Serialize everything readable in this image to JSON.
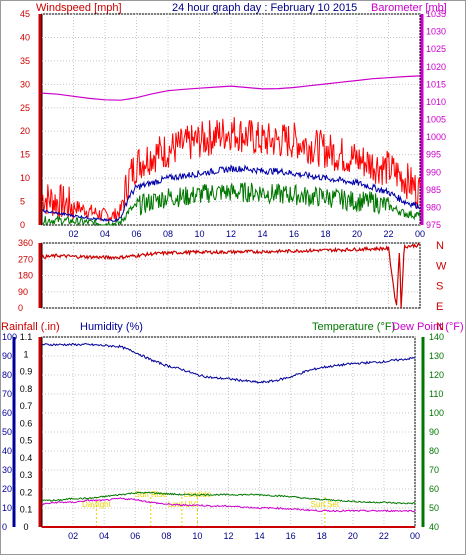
{
  "header": {
    "left_label": "Windspeed [mph]",
    "title": "24 hour graph day : February 10 2015",
    "right_label": "Barometer [mb]"
  },
  "colors": {
    "wind": "#ff0000",
    "gust": "#ff0000",
    "avg_wind": "#0000aa",
    "low_wind": "#007700",
    "barometer": "#cc00cc",
    "direction": "#cc0000",
    "rain": "#cc0000",
    "humidity": "#000099",
    "temperature": "#007700",
    "dew_point": "#cc00cc",
    "event_labels": "#e8d200",
    "left_axis_red": "#cc0000",
    "right_axis_green": "#007700"
  },
  "chart_data": [
    {
      "type": "line",
      "title": "24 hour graph day : February 10 2015",
      "x_ticks": [
        "02",
        "04",
        "06",
        "08",
        "10",
        "12",
        "14",
        "16",
        "18",
        "20",
        "22",
        "00"
      ],
      "xlim": [
        0,
        24
      ],
      "ylabel_left": "Windspeed [mph]",
      "ylabel_right": "Barometer [mb]",
      "ylim_left": [
        0,
        45
      ],
      "ylim_right": [
        975,
        1035
      ],
      "yticks_left": [
        "0",
        "5",
        "10",
        "15",
        "20",
        "25",
        "30",
        "35",
        "40",
        "45"
      ],
      "yticks_right": [
        "975",
        "980",
        "985",
        "990",
        "995",
        "1000",
        "1005",
        "1010",
        "1015",
        "1020",
        "1025",
        "1030",
        "1035"
      ],
      "grid": true,
      "series": [
        {
          "key": "gust",
          "axis": "left",
          "x": [
            0,
            1,
            2,
            3,
            4,
            4.6,
            5,
            5.5,
            6,
            7,
            8,
            9,
            10,
            11,
            12,
            13,
            14,
            15,
            16,
            17,
            18,
            19,
            20,
            21,
            22,
            23,
            24
          ],
          "values": [
            6,
            5,
            4,
            3,
            2,
            2,
            3,
            10,
            13,
            15,
            16,
            17,
            18,
            19,
            20,
            19,
            18,
            18,
            18,
            17,
            16,
            15,
            14,
            13,
            12,
            10,
            7
          ]
        },
        {
          "key": "avg_wind",
          "axis": "left",
          "x": [
            0,
            1,
            2,
            3,
            4,
            4.6,
            5,
            5.5,
            6,
            7,
            8,
            9,
            10,
            11,
            12,
            13,
            14,
            15,
            16,
            17,
            18,
            19,
            20,
            21,
            22,
            23,
            24
          ],
          "values": [
            3,
            2.5,
            2,
            1.5,
            1,
            1,
            1.5,
            6,
            8,
            9,
            10,
            10.5,
            11,
            11.5,
            12,
            12,
            11.5,
            11.5,
            11,
            10.5,
            10,
            9.5,
            9,
            8,
            7,
            5,
            4
          ]
        },
        {
          "key": "low_wind",
          "axis": "left",
          "x": [
            0,
            1,
            2,
            3,
            4,
            4.6,
            5,
            5.5,
            6,
            7,
            8,
            9,
            10,
            11,
            12,
            13,
            14,
            15,
            16,
            17,
            18,
            19,
            20,
            21,
            22,
            23,
            24
          ],
          "values": [
            1,
            1,
            0.8,
            0.5,
            0.3,
            0.3,
            0.5,
            3,
            4,
            5,
            6,
            6,
            6.5,
            7,
            7,
            7,
            7,
            6.5,
            6.5,
            6,
            6,
            5.5,
            5,
            5,
            4,
            2.5,
            2
          ]
        },
        {
          "key": "barometer",
          "axis": "right",
          "x": [
            0,
            1,
            2,
            3,
            4,
            5,
            6,
            7,
            8,
            9,
            10,
            11,
            12,
            13,
            14,
            15,
            16,
            17,
            18,
            19,
            20,
            21,
            22,
            23,
            24
          ],
          "values": [
            1012.5,
            1012.2,
            1011.6,
            1011.0,
            1010.6,
            1010.5,
            1011.2,
            1012.3,
            1013.2,
            1013.6,
            1013.9,
            1014.2,
            1014.5,
            1014.1,
            1013.7,
            1013.8,
            1014.1,
            1014.6,
            1015.1,
            1015.6,
            1016.1,
            1016.6,
            1016.9,
            1017.2,
            1017.4
          ]
        }
      ]
    },
    {
      "type": "line",
      "title": "",
      "x_ticks": [
        "02",
        "04",
        "06",
        "08",
        "10",
        "12",
        "14",
        "16",
        "18",
        "20",
        "22",
        "00"
      ],
      "xlim": [
        0,
        24
      ],
      "ylim": [
        0,
        360
      ],
      "yticks": [
        "0",
        "90",
        "180",
        "270",
        "360"
      ],
      "right_labels": [
        "N",
        "W",
        "S",
        "E",
        "N"
      ],
      "series": [
        {
          "key": "direction",
          "x": [
            0,
            1,
            2,
            3,
            4,
            5,
            6,
            7,
            8,
            9,
            10,
            11,
            12,
            13,
            14,
            15,
            16,
            17,
            18,
            19,
            20,
            21,
            22,
            22.5,
            22.7,
            22.8,
            23,
            23.5,
            24
          ],
          "values": [
            282,
            290,
            285,
            283,
            280,
            281,
            290,
            300,
            305,
            308,
            310,
            309,
            310,
            312,
            312,
            314,
            316,
            318,
            320,
            322,
            325,
            328,
            330,
            0,
            330,
            0,
            340,
            345,
            348
          ]
        }
      ]
    },
    {
      "type": "line",
      "title": "",
      "x_ticks": [
        "02",
        "04",
        "06",
        "08",
        "10",
        "12",
        "14",
        "16",
        "18",
        "20",
        "22",
        "00"
      ],
      "xlim": [
        0,
        24
      ],
      "labels": {
        "rainfall": "Rainfall (.in)",
        "humidity": "Humidity (%)",
        "temperature": "Temperature (°F)",
        "dew_point": "Dew Point (°F)"
      },
      "ylim_humidity": [
        0,
        100
      ],
      "ylim_rain": [
        0,
        1.1
      ],
      "ylim_temp": [
        40,
        140
      ],
      "yticks_humidity": [
        "0",
        "10",
        "20",
        "30",
        "40",
        "50",
        "60",
        "70",
        "80",
        "90",
        "100"
      ],
      "yticks_rain": [
        "0",
        "0.1",
        "0.2",
        "0.3",
        "0.4",
        "0.5",
        "0.6",
        "0.7",
        "0.8",
        "0.9",
        "1",
        "1.1"
      ],
      "yticks_temp": [
        "40",
        "50",
        "60",
        "70",
        "80",
        "90",
        "100",
        "110",
        "120",
        "130",
        "140"
      ],
      "events": [
        {
          "label": "Daylight",
          "x": 3.5
        },
        {
          "label": "Sun Rise",
          "x": 7.0
        },
        {
          "label": "Low UV",
          "x": 9.0
        },
        {
          "label": "Lowtide",
          "x": 10.0
        },
        {
          "label": "Sun Set",
          "x": 18.2
        }
      ],
      "series": [
        {
          "key": "humidity",
          "axis": "humidity",
          "x": [
            0,
            1,
            2,
            3,
            4,
            5,
            6,
            7,
            8,
            9,
            10,
            11,
            12,
            13,
            14,
            15,
            16,
            17,
            18,
            19,
            20,
            21,
            22,
            23,
            24
          ],
          "values": [
            96,
            96,
            96,
            96,
            95.5,
            95,
            92,
            88,
            85,
            83,
            80,
            78.5,
            78,
            77,
            76,
            77,
            79,
            82,
            84,
            85,
            86,
            86.5,
            87,
            88,
            89
          ]
        },
        {
          "key": "temperature",
          "axis": "temp",
          "x": [
            0,
            1,
            2,
            3,
            4,
            5,
            6,
            7,
            8,
            9,
            10,
            11,
            12,
            13,
            14,
            15,
            16,
            17,
            18,
            19,
            20,
            21,
            22,
            23,
            24
          ],
          "values": [
            54,
            54,
            55,
            55,
            56,
            57,
            58,
            58,
            57.5,
            57,
            57,
            57,
            57,
            57,
            57,
            56.5,
            56,
            55,
            54.5,
            54,
            53.5,
            53,
            53,
            52.5,
            52.5
          ]
        },
        {
          "key": "dew_point",
          "axis": "temp",
          "x": [
            0,
            1,
            2,
            3,
            4,
            5,
            6,
            7,
            8,
            9,
            10,
            11,
            12,
            13,
            14,
            15,
            16,
            17,
            18,
            19,
            20,
            21,
            22,
            23,
            24
          ],
          "values": [
            52,
            53,
            53,
            54,
            54,
            55,
            54.5,
            53,
            52,
            51.5,
            51.5,
            51,
            51,
            50.5,
            50,
            50,
            49.5,
            49,
            48.5,
            48.5,
            48.5,
            48.5,
            48.5,
            48.5,
            48.5
          ]
        },
        {
          "key": "rainfall",
          "axis": "rain",
          "x": [
            0,
            24
          ],
          "values": [
            0,
            0
          ]
        }
      ]
    }
  ]
}
